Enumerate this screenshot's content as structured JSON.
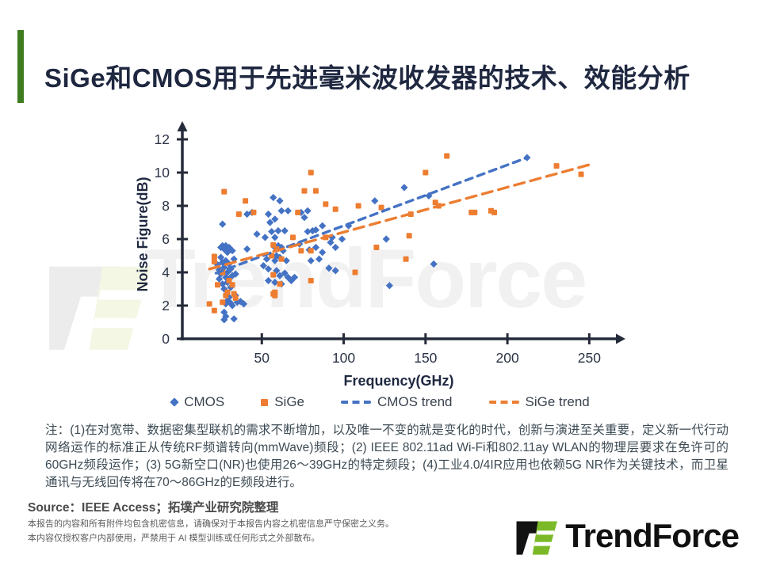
{
  "header": {
    "title": "SiGe和CMOS用于先进毫米波收发器的技术、效能分析"
  },
  "watermark": {
    "text": "TrendForce"
  },
  "chart_data": {
    "type": "scatter",
    "xlabel": "Frequency(GHz)",
    "ylabel": "Noise Figure(dB)",
    "xlim": [
      0,
      270
    ],
    "ylim": [
      0,
      13
    ],
    "x_ticks": [
      50,
      100,
      150,
      200,
      250
    ],
    "y_ticks": [
      0,
      2,
      4,
      6,
      8,
      10,
      12
    ],
    "grid": false,
    "legend_position": "bottom",
    "series": [
      {
        "name": "CMOS",
        "type": "scatter",
        "marker": "diamond",
        "color": "#4472C4",
        "points": [
          [
            23,
            4.45
          ],
          [
            24,
            4.15
          ],
          [
            24,
            3.6
          ],
          [
            25,
            5.5
          ],
          [
            25,
            4.9
          ],
          [
            25,
            3.9
          ],
          [
            26,
            6.9
          ],
          [
            26,
            5.6
          ],
          [
            26,
            4.6
          ],
          [
            26,
            3.3
          ],
          [
            27,
            5.4
          ],
          [
            27,
            4.3
          ],
          [
            27,
            3.0
          ],
          [
            27,
            1.6
          ],
          [
            27,
            1.15
          ],
          [
            28,
            5.6
          ],
          [
            28,
            4.7
          ],
          [
            28,
            3.7
          ],
          [
            28,
            2.1
          ],
          [
            28,
            1.35
          ],
          [
            29,
            5.2
          ],
          [
            29,
            4.0
          ],
          [
            29,
            3.4
          ],
          [
            29,
            2.3
          ],
          [
            30,
            5.5
          ],
          [
            30,
            4.5
          ],
          [
            30,
            3.6
          ],
          [
            30,
            2.5
          ],
          [
            31,
            4.2
          ],
          [
            31,
            3.1
          ],
          [
            31,
            2.15
          ],
          [
            32,
            5.3
          ],
          [
            32,
            3.8
          ],
          [
            32,
            2.0
          ],
          [
            33,
            4.8
          ],
          [
            33,
            1.2
          ],
          [
            34,
            3.9
          ],
          [
            34,
            2.6
          ],
          [
            35,
            2.2
          ],
          [
            37,
            2.25
          ],
          [
            39,
            2.1
          ],
          [
            41,
            7.5
          ],
          [
            41,
            5.4
          ],
          [
            44,
            7.6
          ],
          [
            47,
            6.3
          ],
          [
            51,
            4.4
          ],
          [
            52,
            6.1
          ],
          [
            53,
            4.8
          ],
          [
            54,
            7.5
          ],
          [
            54,
            4.2
          ],
          [
            54,
            3.5
          ],
          [
            55,
            7.0
          ],
          [
            56,
            6.45
          ],
          [
            57,
            8.5
          ],
          [
            58,
            7.2
          ],
          [
            58,
            6.1
          ],
          [
            58,
            5.5
          ],
          [
            58,
            4.7
          ],
          [
            58,
            3.4
          ],
          [
            59,
            5.0
          ],
          [
            59,
            4.1
          ],
          [
            60,
            6.5
          ],
          [
            60,
            5.6
          ],
          [
            61,
            8.3
          ],
          [
            61,
            4.9
          ],
          [
            61,
            3.8
          ],
          [
            62,
            7.7
          ],
          [
            62,
            5.5
          ],
          [
            62,
            3.3
          ],
          [
            63,
            5.3
          ],
          [
            64,
            6.5
          ],
          [
            64,
            3.95
          ],
          [
            65,
            4.7
          ],
          [
            66,
            7.7
          ],
          [
            66,
            3.7
          ],
          [
            68,
            3.5
          ],
          [
            70,
            3.7
          ],
          [
            73,
            5.7
          ],
          [
            74,
            7.6
          ],
          [
            76,
            7.3
          ],
          [
            78,
            7.7
          ],
          [
            78,
            6.45
          ],
          [
            79,
            5.35
          ],
          [
            80,
            4.7
          ],
          [
            81,
            6.5
          ],
          [
            83,
            6.55
          ],
          [
            83,
            5.5
          ],
          [
            85,
            4.8
          ],
          [
            87,
            6.8
          ],
          [
            87,
            5.2
          ],
          [
            91,
            4.25
          ],
          [
            92,
            5.8
          ],
          [
            93,
            6.1
          ],
          [
            95,
            5.5
          ],
          [
            95,
            4.1
          ],
          [
            99,
            6.0
          ],
          [
            103,
            6.8
          ],
          [
            119,
            8.3
          ],
          [
            126,
            6.0
          ],
          [
            128,
            3.2
          ],
          [
            137,
            9.1
          ],
          [
            152,
            8.6
          ],
          [
            155,
            4.5
          ],
          [
            212,
            10.9
          ]
        ]
      },
      {
        "name": "SiGe",
        "type": "scatter",
        "marker": "square",
        "color": "#ED7D31",
        "points": [
          [
            18,
            2.1
          ],
          [
            21,
            4.95
          ],
          [
            21,
            4.65
          ],
          [
            21,
            1.7
          ],
          [
            23,
            3.25
          ],
          [
            26,
            4.0
          ],
          [
            26,
            2.2
          ],
          [
            27,
            8.85
          ],
          [
            28,
            2.6
          ],
          [
            29,
            2.8
          ],
          [
            30,
            3.5
          ],
          [
            32,
            3.25
          ],
          [
            33,
            2.7
          ],
          [
            34,
            2.45
          ],
          [
            36,
            7.5
          ],
          [
            40,
            8.3
          ],
          [
            45,
            7.6
          ],
          [
            56,
            5.0
          ],
          [
            57,
            5.65
          ],
          [
            57,
            3.85
          ],
          [
            57,
            2.7
          ],
          [
            58,
            2.8
          ],
          [
            58,
            2.6
          ],
          [
            59,
            5.4
          ],
          [
            61,
            3.3
          ],
          [
            62,
            4.8
          ],
          [
            69,
            6.1
          ],
          [
            72,
            7.6
          ],
          [
            74,
            5.3
          ],
          [
            76,
            8.9
          ],
          [
            80,
            10.0
          ],
          [
            80,
            5.3
          ],
          [
            80,
            3.5
          ],
          [
            83,
            8.9
          ],
          [
            89,
            8.1
          ],
          [
            89,
            6.1
          ],
          [
            95,
            7.8
          ],
          [
            107,
            4.0
          ],
          [
            109,
            8.0
          ],
          [
            120,
            5.5
          ],
          [
            123,
            7.9
          ],
          [
            138,
            4.8
          ],
          [
            140,
            6.2
          ],
          [
            141,
            7.5
          ],
          [
            150,
            10.0
          ],
          [
            156,
            8.2
          ],
          [
            158,
            8.0
          ],
          [
            163,
            11.0
          ],
          [
            178,
            7.6
          ],
          [
            180,
            7.6
          ],
          [
            190,
            7.7
          ],
          [
            192,
            7.6
          ],
          [
            230,
            10.4
          ],
          [
            245,
            9.9
          ]
        ]
      },
      {
        "name": "CMOS trend",
        "type": "dashed-line",
        "color": "#4472C4",
        "dash": "9 7",
        "points": [
          [
            22,
            3.95
          ],
          [
            212,
            10.9
          ]
        ]
      },
      {
        "name": "SiGe trend",
        "type": "dashed-line",
        "color": "#ED7D31",
        "dash": "13 8",
        "points": [
          [
            18,
            4.2
          ],
          [
            251,
            10.5
          ]
        ]
      }
    ]
  },
  "notes": {
    "text": "注：(1)在对宽带、数据密集型联机的需求不断增加，以及唯一不变的就是变化的时代，创新与演进至关重要，定义新一代行动网络运作的标准正从传统RF频谱转向(mmWave)频段；(2) IEEE 802.11ad Wi-Fi和802.11ay WLAN的物理层要求在免许可的60GHz频段运作；(3) 5G新空口(NR)也使用26～39GHz的特定频段；(4)工业4.0/4IR应用也依赖5G NR作为关键技术，而卫星通讯与无线回传将在70～86GHz的E频段进行。"
  },
  "source": {
    "label": "Source：IEEE Access；拓墣产业研究院整理"
  },
  "footer": {
    "line1": "本报告的内容和所有附件均包含机密信息，请确保对于本报告内容之机密信息严守保密之义务。",
    "line2": "本内容仅授权客户内部使用，严禁用于 AI 模型训练或任何形式之外部散布。",
    "logo_text": "TrendForce"
  },
  "colors": {
    "accent_green": "#3E7C1F",
    "title_navy": "#1F2840",
    "axis": "#252B3A",
    "cmos_blue": "#4472C4",
    "sige_orange": "#ED7D31",
    "watermark_gray": "#F1F1F1",
    "watermark_pale_green": "#F3F7E3",
    "logo_green": "#7CB928",
    "logo_black": "#121212"
  }
}
